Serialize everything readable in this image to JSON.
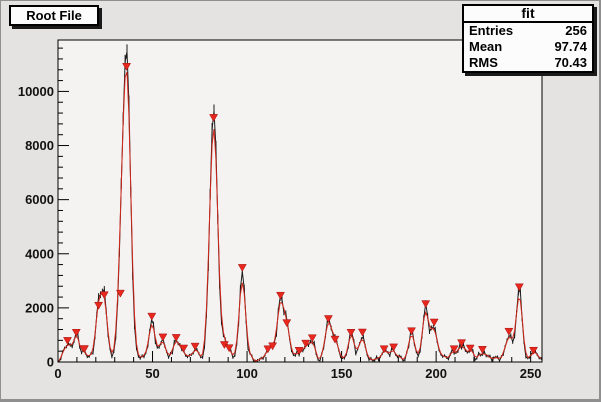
{
  "title": {
    "label": "Root File"
  },
  "stats": {
    "title": "fit",
    "rows": [
      {
        "label": "Entries",
        "value": "256"
      },
      {
        "label": "Mean",
        "value": "97.74"
      },
      {
        "label": "RMS",
        "value": "70.43"
      }
    ]
  },
  "chart_data": {
    "type": "line",
    "title": "Root File",
    "xlabel": "",
    "ylabel": "",
    "xlim": [
      0,
      256
    ],
    "ylim": [
      0,
      11900
    ],
    "x_ticks": [
      0,
      50,
      100,
      150,
      200,
      250
    ],
    "x_minor_step": 10,
    "y_ticks": [
      0,
      2000,
      4000,
      6000,
      8000,
      10000
    ],
    "y_minor_step": 400,
    "bins": 256,
    "noise_max": 250,
    "grid": false,
    "legend": "none",
    "series": [
      {
        "name": "histogram",
        "style": "line-with-error-bars",
        "color": "#1a1a1a"
      },
      {
        "name": "fit-curve",
        "style": "line",
        "color": "#d4281c"
      },
      {
        "name": "found-peaks",
        "style": "triangle-down-marker",
        "color": "#e8281e"
      }
    ],
    "peaks": [
      [
        5,
        650
      ],
      [
        9.7,
        950
      ],
      [
        14,
        350
      ],
      [
        21.5,
        1950
      ],
      [
        24.5,
        2340
      ],
      [
        33,
        2400
      ],
      [
        36.3,
        10780
      ],
      [
        49.6,
        1550
      ],
      [
        55.5,
        780
      ],
      [
        62.5,
        760
      ],
      [
        66.5,
        370
      ],
      [
        72.5,
        440
      ],
      [
        82.3,
        8890
      ],
      [
        88,
        500
      ],
      [
        90.5,
        380
      ],
      [
        97.5,
        3350
      ],
      [
        111,
        340
      ],
      [
        113.5,
        450
      ],
      [
        117.7,
        2320
      ],
      [
        121,
        1310
      ],
      [
        127.5,
        285
      ],
      [
        131,
        550
      ],
      [
        134.5,
        750
      ],
      [
        143,
        1460
      ],
      [
        146.5,
        700
      ],
      [
        155,
        950
      ],
      [
        161,
        960
      ],
      [
        172.5,
        345
      ],
      [
        177.5,
        410
      ],
      [
        187,
        1010
      ],
      [
        194.5,
        2010
      ],
      [
        199,
        1330
      ],
      [
        209.5,
        345
      ],
      [
        213.5,
        570
      ],
      [
        218,
        370
      ],
      [
        224.5,
        320
      ],
      [
        238.5,
        990
      ],
      [
        244,
        2630
      ],
      [
        251.5,
        290
      ]
    ],
    "colors": {
      "canvas_bg": "#e4e3e1",
      "frame_bg": "#f4f3f1",
      "axis": "#000000",
      "text": "#111111"
    }
  }
}
